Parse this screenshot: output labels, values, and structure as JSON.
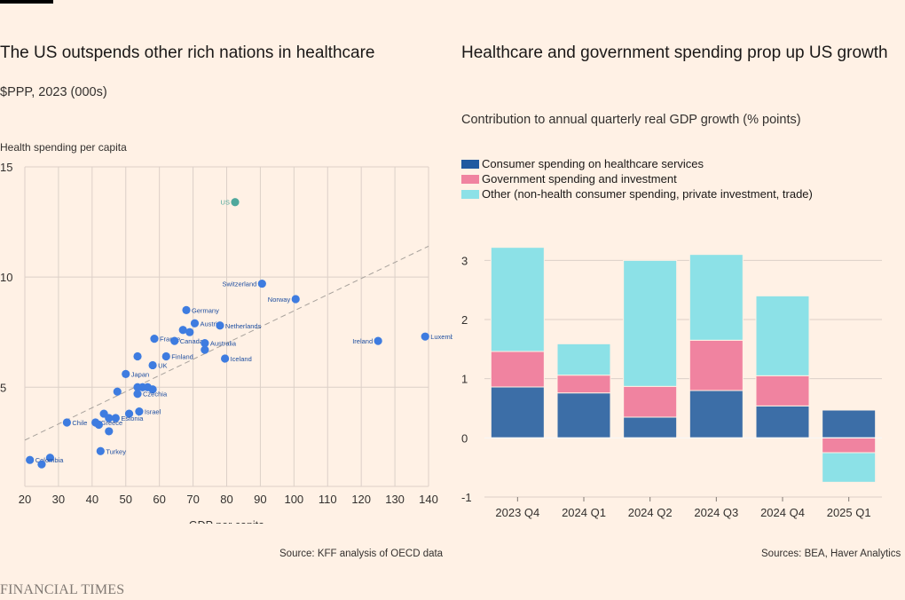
{
  "brand": "FINANCIAL TIMES",
  "colors": {
    "background": "#fff1e5",
    "dot": "#3e7ce0",
    "us_dot": "#4fa89c",
    "healthcare": "#3c6ea7",
    "government": "#f083a0",
    "other": "#8ce1e7"
  },
  "chart_data": [
    {
      "type": "scatter",
      "title": "The US outspends other rich nations in healthcare",
      "subtitle": "$PPP, 2023 (000s)",
      "xlabel": "GDP per capita",
      "ylabel": "Health spending per capita",
      "xlim": [
        20,
        140
      ],
      "ylim": [
        0.5,
        15
      ],
      "xticks": [
        20,
        30,
        40,
        50,
        60,
        70,
        80,
        90,
        100,
        110,
        120,
        130,
        140
      ],
      "yticks": [
        5,
        10,
        15
      ],
      "grid": true,
      "trendline": {
        "style": "dashed",
        "from": [
          20,
          2.6
        ],
        "to": [
          140,
          11.4
        ]
      },
      "source": "Source: KFF analysis of OECD data",
      "points": [
        {
          "label": "US",
          "x": 82.5,
          "y": 13.4,
          "highlight": true
        },
        {
          "label": "Switzerland",
          "x": 90.5,
          "y": 9.7
        },
        {
          "label": "Norway",
          "x": 100.5,
          "y": 9.0
        },
        {
          "label": "Luxembourg",
          "x": 139,
          "y": 7.3
        },
        {
          "label": "Ireland",
          "x": 125,
          "y": 7.1
        },
        {
          "label": "Germany",
          "x": 68,
          "y": 8.5
        },
        {
          "label": "Austria",
          "x": 70.5,
          "y": 7.9
        },
        {
          "label": "Netherlands",
          "x": 78,
          "y": 7.8
        },
        {
          "label": "",
          "x": 67,
          "y": 7.6
        },
        {
          "label": "",
          "x": 69,
          "y": 7.5
        },
        {
          "label": "France",
          "x": 58.5,
          "y": 7.2
        },
        {
          "label": "Canada",
          "x": 64.5,
          "y": 7.1
        },
        {
          "label": "Australia",
          "x": 73.5,
          "y": 7.0
        },
        {
          "label": "",
          "x": 73.5,
          "y": 6.7
        },
        {
          "label": "Finland",
          "x": 62,
          "y": 6.4
        },
        {
          "label": "Iceland",
          "x": 79.5,
          "y": 6.3
        },
        {
          "label": "",
          "x": 53.5,
          "y": 6.4
        },
        {
          "label": "UK",
          "x": 58,
          "y": 6.0
        },
        {
          "label": "Japan",
          "x": 50,
          "y": 5.6
        },
        {
          "label": "",
          "x": 53.5,
          "y": 5.0
        },
        {
          "label": "",
          "x": 55,
          "y": 5.0
        },
        {
          "label": "",
          "x": 56.5,
          "y": 5.0
        },
        {
          "label": "",
          "x": 58,
          "y": 4.9
        },
        {
          "label": "Czechia",
          "x": 53.5,
          "y": 4.7
        },
        {
          "label": "",
          "x": 47.5,
          "y": 4.8
        },
        {
          "label": "Israel",
          "x": 54,
          "y": 3.9
        },
        {
          "label": "",
          "x": 51,
          "y": 3.8
        },
        {
          "label": "",
          "x": 43.5,
          "y": 3.8
        },
        {
          "label": "Estonia",
          "x": 47,
          "y": 3.6
        },
        {
          "label": "",
          "x": 45,
          "y": 3.6
        },
        {
          "label": "Greece",
          "x": 41,
          "y": 3.4
        },
        {
          "label": "",
          "x": 42,
          "y": 3.3
        },
        {
          "label": "Chile",
          "x": 32.5,
          "y": 3.4
        },
        {
          "label": "",
          "x": 45,
          "y": 3.0
        },
        {
          "label": "Turkey",
          "x": 42.5,
          "y": 2.1
        },
        {
          "label": "",
          "x": 27.5,
          "y": 1.8
        },
        {
          "label": "Colombia",
          "x": 21.5,
          "y": 1.7
        },
        {
          "label": "",
          "x": 25,
          "y": 1.5
        }
      ]
    },
    {
      "type": "bar",
      "stacked": true,
      "title": "Healthcare and government spending prop up US growth",
      "subtitle": "Contribution to annual quarterly real GDP growth (% points)",
      "categories": [
        "2023 Q4",
        "2024 Q1",
        "2024 Q2",
        "2024 Q3",
        "2024 Q4",
        "2025 Q1"
      ],
      "ylim": [
        -1,
        3.2
      ],
      "yticks": [
        -1,
        0,
        1,
        2,
        3
      ],
      "legend_position": "top-left",
      "source": "Sources: BEA, Haver Analytics",
      "series": [
        {
          "name": "Consumer spending on healthcare services",
          "color": "#3c6ea7",
          "values": [
            0.86,
            0.76,
            0.35,
            0.8,
            0.54,
            0.47
          ]
        },
        {
          "name": "Government spending and investment",
          "color": "#f083a0",
          "values": [
            0.6,
            0.3,
            0.52,
            0.85,
            0.51,
            -0.25
          ]
        },
        {
          "name": "Other (non-health consumer spending, private investment, trade)",
          "color": "#8ce1e7",
          "values": [
            1.76,
            0.53,
            2.13,
            1.45,
            1.35,
            -0.5
          ]
        }
      ]
    }
  ]
}
